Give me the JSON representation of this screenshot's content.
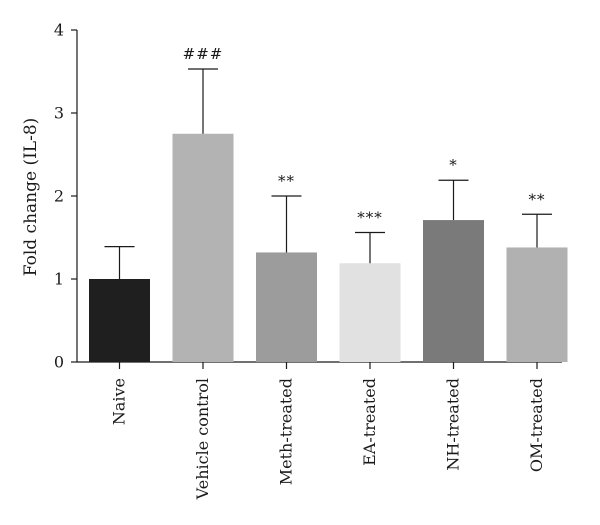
{
  "chart_data": {
    "type": "bar",
    "ylabel": "Fold change (IL-8)",
    "xlabel": "",
    "ylim": [
      0,
      4
    ],
    "yticks": [
      0,
      1,
      2,
      3,
      4
    ],
    "grid": false,
    "categories": [
      "Naive",
      "Vehicle control",
      "Meth-treated",
      "EA-treated",
      "NH-treated",
      "OM-treated"
    ],
    "values": [
      1.0,
      2.75,
      1.32,
      1.19,
      1.71,
      1.38
    ],
    "error_upper": [
      1.39,
      3.53,
      2.0,
      1.56,
      2.19,
      1.78
    ],
    "annotations": [
      "",
      "###",
      "**",
      "***",
      "*",
      "**"
    ],
    "bar_colors": [
      "#1f1f1f",
      "#b3b3b3",
      "#9c9c9c",
      "#e1e1e1",
      "#7a7a7a",
      "#b1b1b1"
    ]
  }
}
